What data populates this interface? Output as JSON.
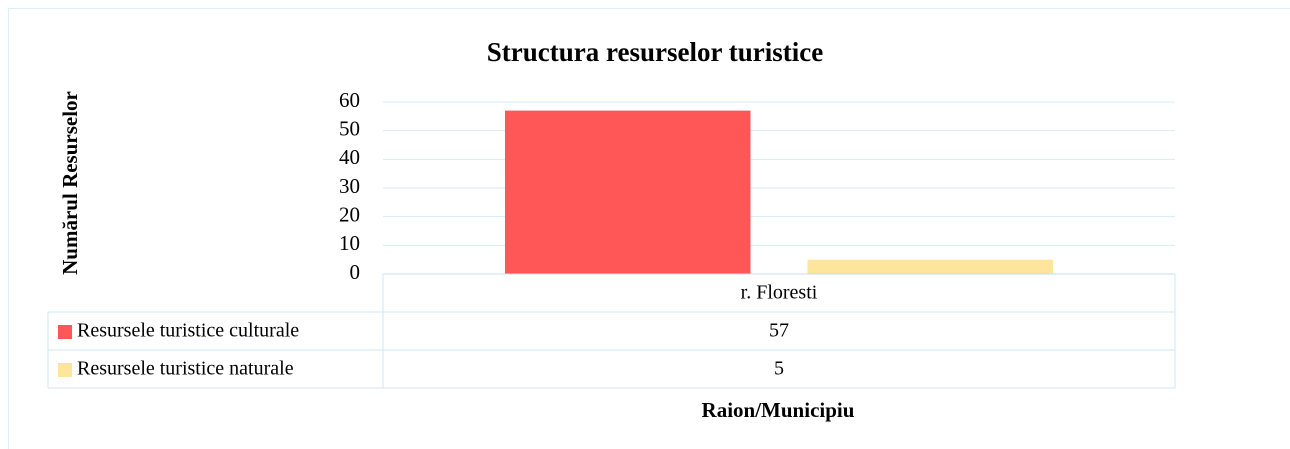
{
  "chart_data": {
    "type": "bar",
    "title": "Structura resurselor turistice",
    "categories": [
      "r. Floresti"
    ],
    "series": [
      {
        "name": "Resursele turistice culturale",
        "color": "#ff5757",
        "values": [
          57
        ]
      },
      {
        "name": "Resursele turistice naturale",
        "color": "#fde59c",
        "values": [
          5
        ]
      }
    ],
    "ylim": [
      0,
      60
    ],
    "yticks": [
      0,
      10,
      20,
      30,
      40,
      50,
      60
    ],
    "x_label": "Raion/Municipiu",
    "y_label": "Numărul Resurselor",
    "grid": true,
    "data_table": true
  }
}
